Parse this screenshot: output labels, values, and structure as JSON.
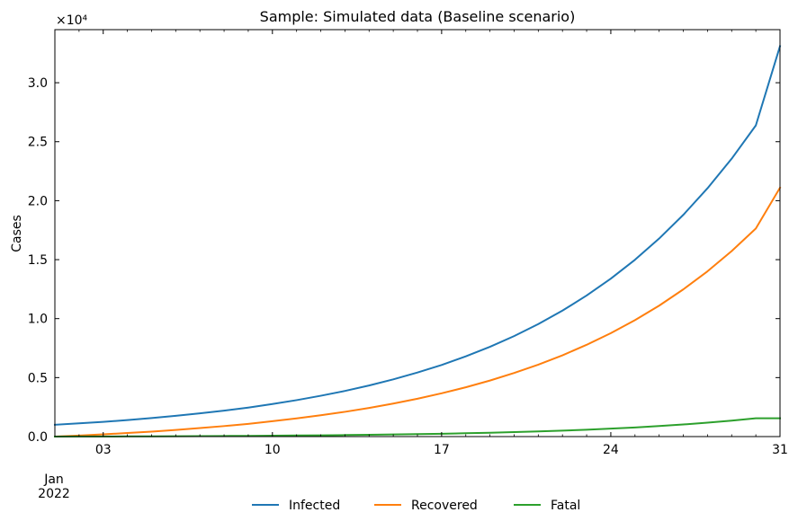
{
  "chart_data": {
    "type": "line",
    "title": "Sample: Simulated data (Baseline scenario)",
    "xlabel": "",
    "ylabel": "Cases",
    "y_offset_text": "×10⁴",
    "y_scale_factor": 10000,
    "x_start": "2022-01-01",
    "x_end": "2022-01-31",
    "xlim": [
      "2022-01-01",
      "2022-01-31"
    ],
    "ylim": [
      0,
      34500
    ],
    "x_ticks": [
      {
        "date": "2022-01-03",
        "label": "03"
      },
      {
        "date": "2022-01-10",
        "label": "10"
      },
      {
        "date": "2022-01-17",
        "label": "17"
      },
      {
        "date": "2022-01-24",
        "label": "24"
      },
      {
        "date": "2022-01-31",
        "label": "31"
      }
    ],
    "x_sublabel_month": "Jan",
    "x_sublabel_year": "2022",
    "y_ticks": [
      {
        "value": 0,
        "label": "0.0"
      },
      {
        "value": 5000,
        "label": "0.5"
      },
      {
        "value": 10000,
        "label": "1.0"
      },
      {
        "value": 15000,
        "label": "1.5"
      },
      {
        "value": 20000,
        "label": "2.0"
      },
      {
        "value": 25000,
        "label": "2.5"
      },
      {
        "value": 30000,
        "label": "3.0"
      }
    ],
    "grid": false,
    "legend_position": "bottom-center",
    "x": [
      "2022-01-01",
      "2022-01-02",
      "2022-01-03",
      "2022-01-04",
      "2022-01-05",
      "2022-01-06",
      "2022-01-07",
      "2022-01-08",
      "2022-01-09",
      "2022-01-10",
      "2022-01-11",
      "2022-01-12",
      "2022-01-13",
      "2022-01-14",
      "2022-01-15",
      "2022-01-16",
      "2022-01-17",
      "2022-01-18",
      "2022-01-19",
      "2022-01-20",
      "2022-01-21",
      "2022-01-22",
      "2022-01-23",
      "2022-01-24",
      "2022-01-25",
      "2022-01-26",
      "2022-01-27",
      "2022-01-28",
      "2022-01-29",
      "2022-01-30",
      "2022-01-31"
    ],
    "series": [
      {
        "name": "Infected",
        "color": "#1f77b4",
        "values": [
          1000,
          1120,
          1250,
          1400,
          1570,
          1760,
          1970,
          2200,
          2460,
          2760,
          3090,
          3460,
          3870,
          4330,
          4850,
          5430,
          6070,
          6800,
          7610,
          8520,
          9540,
          10680,
          11960,
          13390,
          14990,
          16790,
          18800,
          21050,
          23560,
          26380,
          33100
        ]
      },
      {
        "name": "Recovered",
        "color": "#ff7f0e",
        "values": [
          0,
          90,
          190,
          300,
          420,
          560,
          720,
          890,
          1080,
          1300,
          1540,
          1810,
          2100,
          2430,
          2800,
          3210,
          3670,
          4180,
          4750,
          5390,
          6100,
          6890,
          7780,
          8770,
          9870,
          11100,
          12480,
          14010,
          15730,
          17640,
          21100
        ]
      },
      {
        "name": "Fatal",
        "color": "#2ca02c",
        "values": [
          0,
          5,
          10,
          16,
          23,
          31,
          40,
          50,
          62,
          76,
          91,
          109,
          129,
          152,
          178,
          208,
          242,
          281,
          326,
          378,
          437,
          505,
          583,
          672,
          774,
          891,
          1025,
          1178,
          1353,
          1554,
          1550
        ]
      }
    ]
  }
}
